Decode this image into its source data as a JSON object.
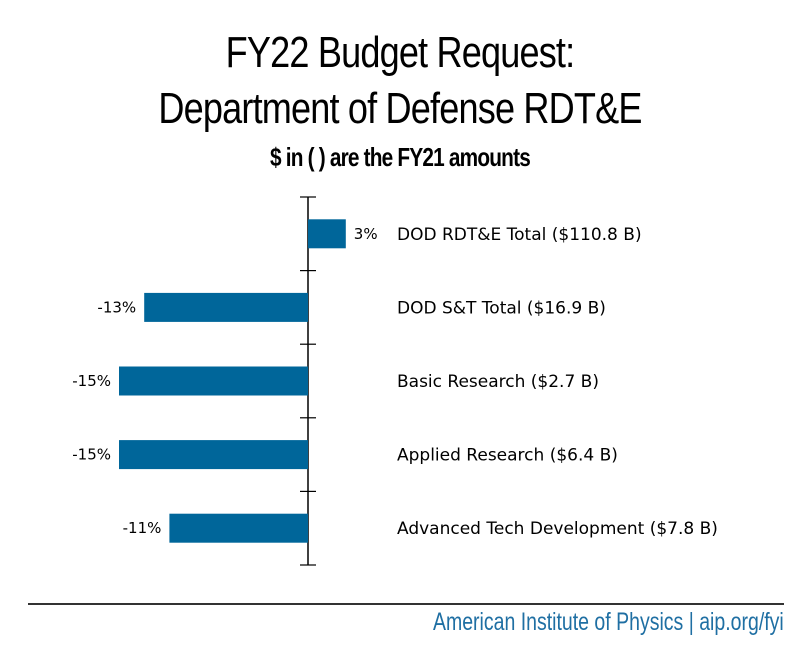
{
  "chart_data": {
    "type": "bar",
    "orientation": "horizontal",
    "title": "FY22 Budget Request:",
    "title_line2": "Department of Defense RDT&E",
    "subtitle": "$ in ( ) are the FY21 amounts",
    "xlabel": "",
    "ylabel": "",
    "unit": "% change FY21 to FY22 request",
    "categories": [
      "DOD RDT&E Total ($110.8 B)",
      "DOD S&T Total ($16.9 B)",
      "Basic Research ($2.7 B)",
      "Applied Research ($6.4 B)",
      "Advanced Tech Development ($7.8 B)"
    ],
    "values": [
      3,
      -13,
      -15,
      -15,
      -11
    ],
    "value_labels": [
      "3%",
      "-13%",
      "-15%",
      "-15%",
      "-11%"
    ],
    "xlim": [
      -17,
      3
    ],
    "grid": false,
    "legend": "none",
    "bar_color": "#00669a"
  },
  "footer": {
    "credit": "American Institute of Physics | aip.org/fyi",
    "credit_color": "#1f6fa3"
  }
}
